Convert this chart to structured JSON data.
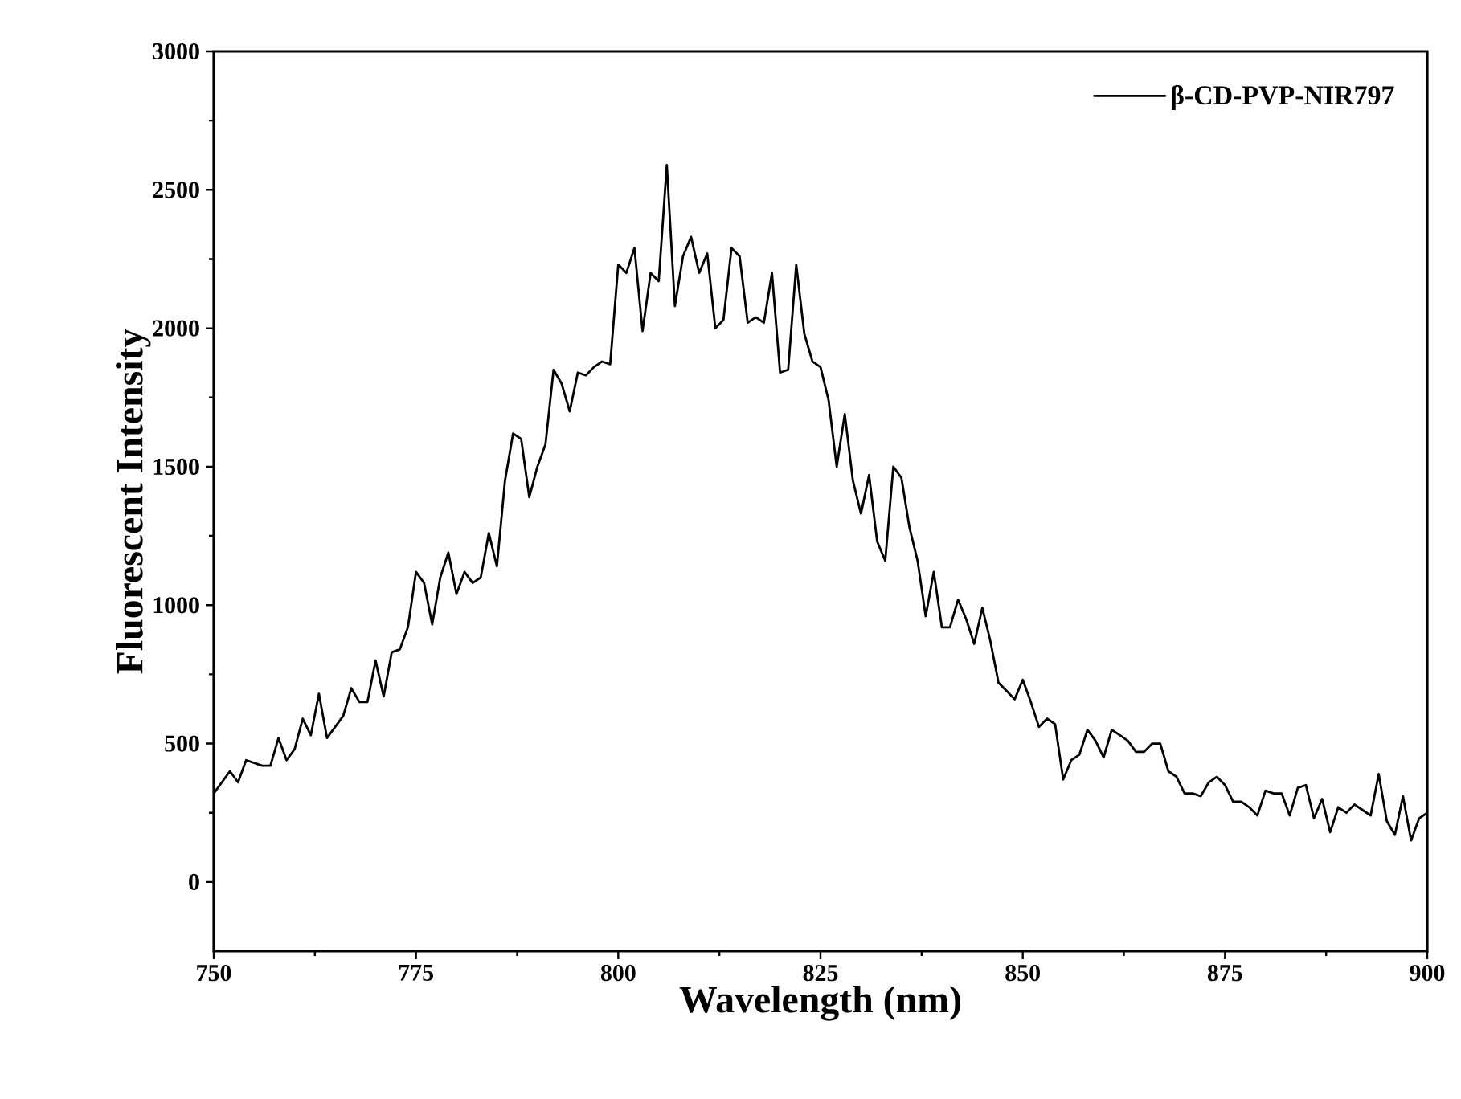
{
  "chart_data": {
    "type": "line",
    "xlabel": "Wavelength (nm)",
    "ylabel": "Fluorescent Intensity",
    "xlim": [
      750,
      900
    ],
    "xticks": [
      750,
      775,
      800,
      825,
      850,
      875,
      900
    ],
    "ylim": [
      -250,
      3000
    ],
    "yticks": [
      0,
      500,
      1000,
      1500,
      2000,
      2500,
      3000
    ],
    "legend": "top right",
    "line_style": "solid",
    "series": [
      {
        "name": "β-CD-PVP-NIR797",
        "color": "#000000",
        "x": [
          750,
          752,
          753,
          754,
          756,
          757,
          758,
          759,
          760,
          761,
          762,
          763,
          764,
          766,
          767,
          768,
          769,
          770,
          771,
          772,
          773,
          774,
          775,
          776,
          777,
          778,
          779,
          780,
          781,
          782,
          783,
          784,
          785,
          786,
          787,
          788,
          789,
          790,
          791,
          792,
          793,
          794,
          795,
          796,
          797,
          798,
          799,
          800,
          801,
          802,
          803,
          804,
          805,
          806,
          807,
          808,
          809,
          810,
          811,
          812,
          813,
          814,
          815,
          816,
          817,
          818,
          819,
          820,
          821,
          822,
          823,
          824,
          825,
          826,
          827,
          828,
          829,
          830,
          831,
          832,
          833,
          834,
          835,
          836,
          837,
          838,
          839,
          840,
          841,
          842,
          843,
          844,
          845,
          846,
          847,
          848,
          849,
          850,
          851,
          852,
          853,
          854,
          855,
          856,
          857,
          858,
          859,
          860,
          861,
          862,
          863,
          864,
          865,
          866,
          867,
          868,
          869,
          870,
          871,
          872,
          873,
          874,
          875,
          876,
          877,
          878,
          879,
          880,
          881,
          882,
          883,
          884,
          885,
          886,
          887,
          888,
          889,
          890,
          891,
          892,
          893,
          894,
          895,
          896,
          897,
          898,
          899,
          900
        ],
        "values": [
          320,
          400,
          360,
          440,
          420,
          420,
          520,
          440,
          480,
          590,
          530,
          680,
          520,
          600,
          700,
          650,
          650,
          800,
          670,
          830,
          840,
          920,
          1120,
          1080,
          930,
          1100,
          1190,
          1040,
          1120,
          1080,
          1100,
          1260,
          1140,
          1450,
          1620,
          1600,
          1390,
          1500,
          1580,
          1850,
          1800,
          1700,
          1840,
          1830,
          1860,
          1880,
          1870,
          2230,
          2200,
          2290,
          1990,
          2200,
          2170,
          2590,
          2080,
          2260,
          2330,
          2200,
          2270,
          2000,
          2030,
          2290,
          2260,
          2020,
          2040,
          2020,
          2200,
          1840,
          1850,
          2230,
          1980,
          1880,
          1860,
          1740,
          1500,
          1690,
          1450,
          1330,
          1470,
          1230,
          1160,
          1500,
          1460,
          1280,
          1160,
          960,
          1120,
          920,
          920,
          1020,
          950,
          860,
          990,
          870,
          720,
          690,
          660,
          730,
          650,
          560,
          590,
          570,
          370,
          440,
          460,
          550,
          510,
          450,
          550,
          530,
          510,
          470,
          470,
          500,
          500,
          400,
          380,
          320,
          320,
          310,
          360,
          380,
          350,
          290,
          290,
          270,
          240,
          330,
          320,
          320,
          240,
          340,
          350,
          230,
          300,
          180,
          270,
          250,
          280,
          260,
          240,
          390,
          220,
          170,
          310,
          150,
          230,
          250
        ]
      }
    ]
  }
}
